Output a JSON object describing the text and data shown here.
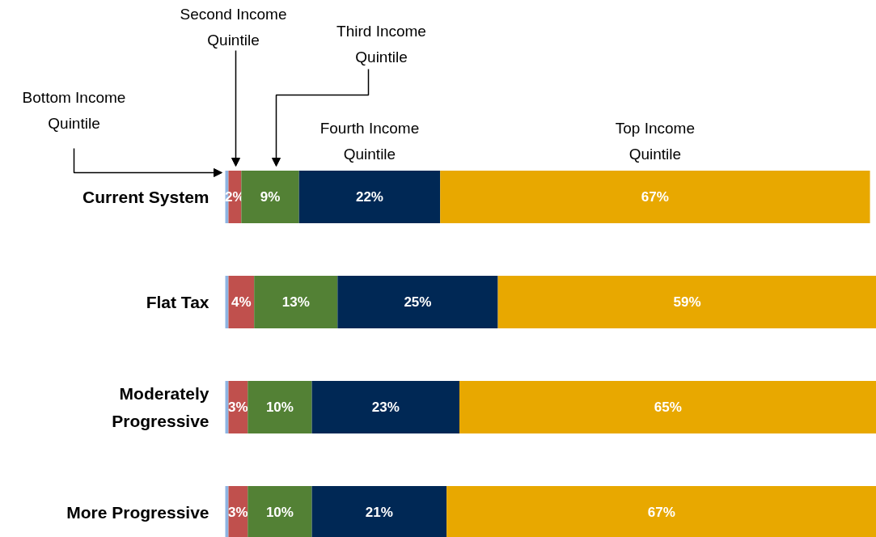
{
  "chart_data": {
    "type": "bar",
    "orientation": "horizontal",
    "stacked": true,
    "tick_labels": "y",
    "categories": [
      "Current System",
      "Flat Tax",
      "Moderately Progressive",
      "More Progressive"
    ],
    "series": [
      {
        "color": "#8db4e2",
        "values": [
          0.5,
          0.5,
          0.5,
          0.5
        ],
        "value_labels": [
          null,
          null,
          null,
          null
        ]
      },
      {
        "color": "#c0504d",
        "values": [
          2,
          4,
          3,
          3
        ],
        "value_labels": [
          "2%",
          "4%",
          "3%",
          "3%"
        ]
      },
      {
        "color": "#538135",
        "values": [
          9,
          13,
          10,
          10
        ],
        "value_labels": [
          "9%",
          "13%",
          "10%",
          "10%"
        ]
      },
      {
        "name": "Fourth Income Quintile",
        "color": "#002855",
        "values": [
          22,
          25,
          23,
          21
        ],
        "value_labels": [
          "22%",
          "25%",
          "23%",
          "21%"
        ]
      },
      {
        "name": "Top Income Quintile",
        "color": "#e8a800",
        "values": [
          67,
          59,
          65,
          67
        ],
        "value_labels": [
          "67%",
          "59%",
          "65%",
          "67%"
        ]
      }
    ],
    "annotations": [
      "Bottom Income Quintile",
      "Second Income Quintile",
      "Third Income Quintile"
    ],
    "grid": false,
    "legend": false
  }
}
